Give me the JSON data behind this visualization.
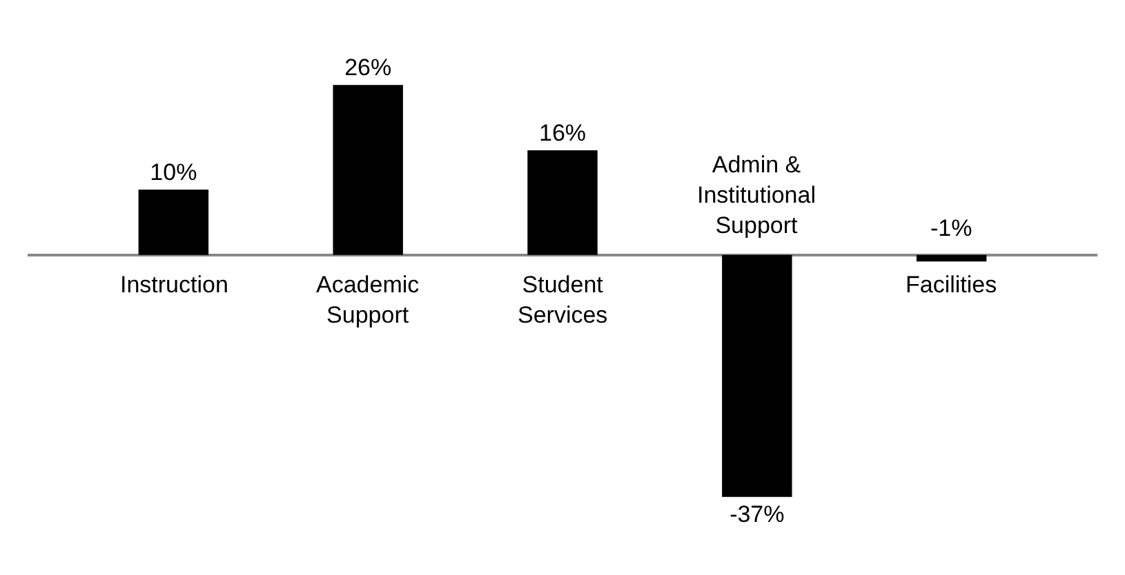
{
  "chart_data": {
    "type": "bar",
    "categories": [
      "Instruction",
      "Academic Support",
      "Student Services",
      "Admin & Institutional Support",
      "Facilities"
    ],
    "values": [
      10,
      26,
      16,
      -37,
      -1
    ],
    "value_labels": [
      "10%",
      "26%",
      "16%",
      "-37%",
      "-1%"
    ],
    "color": "#000000",
    "grid": false,
    "legend": false
  }
}
